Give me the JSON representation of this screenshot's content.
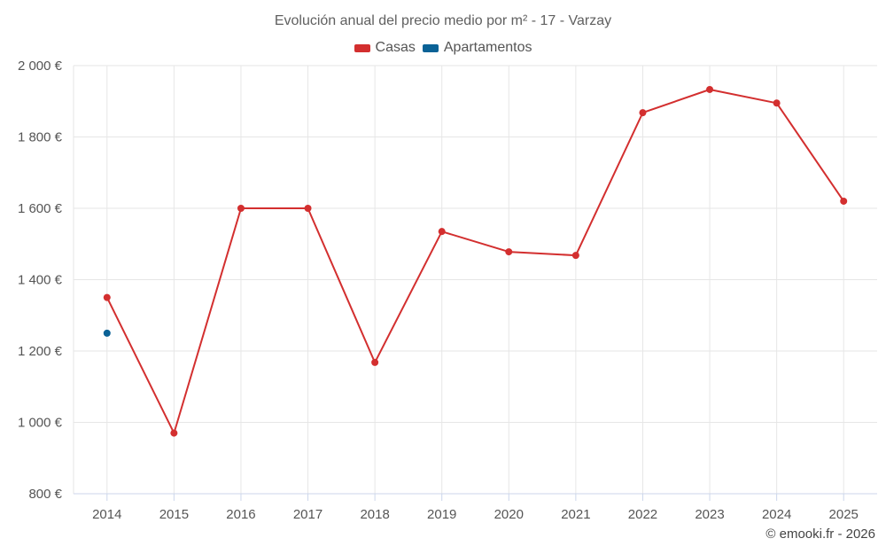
{
  "chart_data": {
    "type": "line",
    "title": "Evolución anual del precio medio por m² - 17 - Varzay",
    "categories": [
      "2014",
      "2015",
      "2016",
      "2017",
      "2018",
      "2019",
      "2020",
      "2021",
      "2022",
      "2023",
      "2024",
      "2025"
    ],
    "series": [
      {
        "name": "Casas",
        "color": "#d32f2f",
        "values": [
          1350,
          970,
          1600,
          1600,
          1168,
          1535,
          1478,
          1468,
          1868,
          1933,
          1895,
          1620
        ]
      },
      {
        "name": "Apartamentos",
        "color": "#0a6296",
        "values": [
          1250,
          null,
          null,
          null,
          null,
          null,
          null,
          null,
          null,
          null,
          null,
          null
        ]
      }
    ],
    "y_ticks": [
      "800 €",
      "1 000 €",
      "1 200 €",
      "1 400 €",
      "1 600 €",
      "1 800 €",
      "2 000 €"
    ],
    "ylim": [
      800,
      2000
    ],
    "y_step": 200,
    "grid": true,
    "legend_position": "top-center"
  },
  "credits": "© emooki.fr - 2026"
}
